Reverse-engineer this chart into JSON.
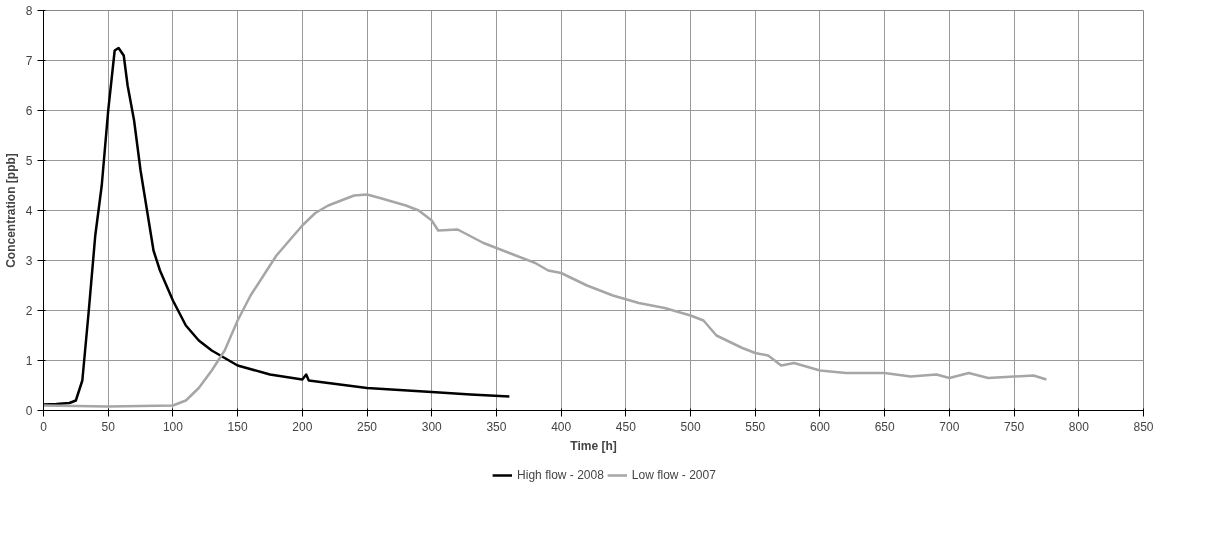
{
  "chart_data": {
    "type": "line",
    "xlabel": "Time [h]",
    "ylabel": "Concentration [ppb]",
    "xlim": [
      0,
      850
    ],
    "xticks": [
      0,
      50,
      100,
      150,
      200,
      250,
      300,
      350,
      400,
      450,
      500,
      550,
      600,
      650,
      700,
      750,
      800,
      850
    ],
    "ylim": [
      0,
      8
    ],
    "yticks": [
      0,
      1,
      2,
      3,
      4,
      5,
      6,
      7,
      8
    ],
    "grid": true,
    "legend": "bottom",
    "marker": "none",
    "line_style": "solid",
    "series": [
      {
        "name": "High flow - 2008",
        "color": "#000000",
        "x": [
          0,
          10,
          20,
          25,
          30,
          35,
          40,
          45,
          50,
          55,
          58,
          62,
          65,
          70,
          75,
          80,
          85,
          90,
          100,
          110,
          120,
          130,
          150,
          175,
          200,
          203,
          205,
          250,
          300,
          330,
          360
        ],
        "values": [
          0.12,
          0.13,
          0.15,
          0.2,
          0.6,
          2,
          3.5,
          4.5,
          6,
          7.2,
          7.25,
          7.1,
          6.5,
          5.8,
          4.8,
          4,
          3.2,
          2.8,
          2.2,
          1.7,
          1.4,
          1.2,
          0.9,
          0.72,
          0.62,
          0.72,
          0.6,
          0.45,
          0.37,
          0.32,
          0.28
        ]
      },
      {
        "name": "Low flow - 2007",
        "color": "#a6a6a6",
        "x": [
          0,
          50,
          100,
          110,
          120,
          130,
          140,
          150,
          160,
          170,
          180,
          190,
          200,
          210,
          220,
          230,
          240,
          250,
          260,
          280,
          290,
          300,
          305,
          320,
          340,
          360,
          380,
          390,
          400,
          420,
          440,
          460,
          480,
          500,
          510,
          520,
          540,
          550,
          560,
          570,
          580,
          600,
          620,
          650,
          670,
          690,
          700,
          715,
          730,
          750,
          765,
          775
        ],
        "values": [
          0.1,
          0.08,
          0.1,
          0.2,
          0.45,
          0.8,
          1.2,
          1.8,
          2.3,
          2.7,
          3.1,
          3.4,
          3.7,
          3.95,
          4.1,
          4.2,
          4.3,
          4.32,
          4.25,
          4.1,
          4.0,
          3.8,
          3.6,
          3.62,
          3.35,
          3.15,
          2.95,
          2.8,
          2.75,
          2.5,
          2.3,
          2.15,
          2.05,
          1.9,
          1.8,
          1.5,
          1.25,
          1.15,
          1.1,
          0.9,
          0.95,
          0.8,
          0.75,
          0.75,
          0.68,
          0.72,
          0.65,
          0.75,
          0.65,
          0.68,
          0.7,
          0.62
        ]
      }
    ]
  }
}
